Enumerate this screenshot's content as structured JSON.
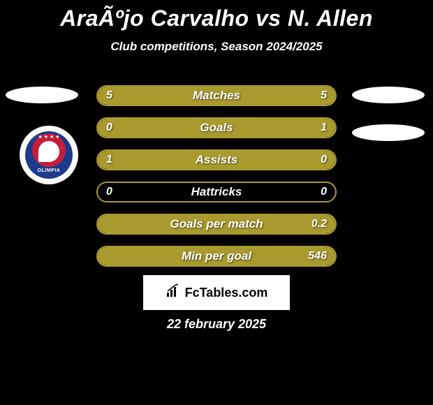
{
  "title": "AraÃºjo Carvalho vs N. Allen",
  "subtitle": "Club competitions, Season 2024/2025",
  "club_logo_label": "OLIMPIA",
  "accent_color": "#a89a2e",
  "background_color": "#000000",
  "text_color": "#ffffff",
  "bar_border_color": "#a89a2e",
  "bar_fill_color": "#a89a2e",
  "stats": [
    {
      "label": "Matches",
      "left_value": "5",
      "right_value": "5",
      "left_pct": 50,
      "right_pct": 50
    },
    {
      "label": "Goals",
      "left_value": "0",
      "right_value": "1",
      "left_pct": 18,
      "right_pct": 82
    },
    {
      "label": "Assists",
      "left_value": "1",
      "right_value": "0",
      "left_pct": 82,
      "right_pct": 18
    },
    {
      "label": "Hattricks",
      "left_value": "0",
      "right_value": "0",
      "left_pct": 0,
      "right_pct": 0
    },
    {
      "label": "Goals per match",
      "left_value": "",
      "right_value": "0.2",
      "left_pct": 0,
      "right_pct": 100
    },
    {
      "label": "Min per goal",
      "left_value": "",
      "right_value": "546",
      "left_pct": 0,
      "right_pct": 100
    }
  ],
  "footer_brand": "FcTables.com",
  "footer_date": "22 february 2025"
}
